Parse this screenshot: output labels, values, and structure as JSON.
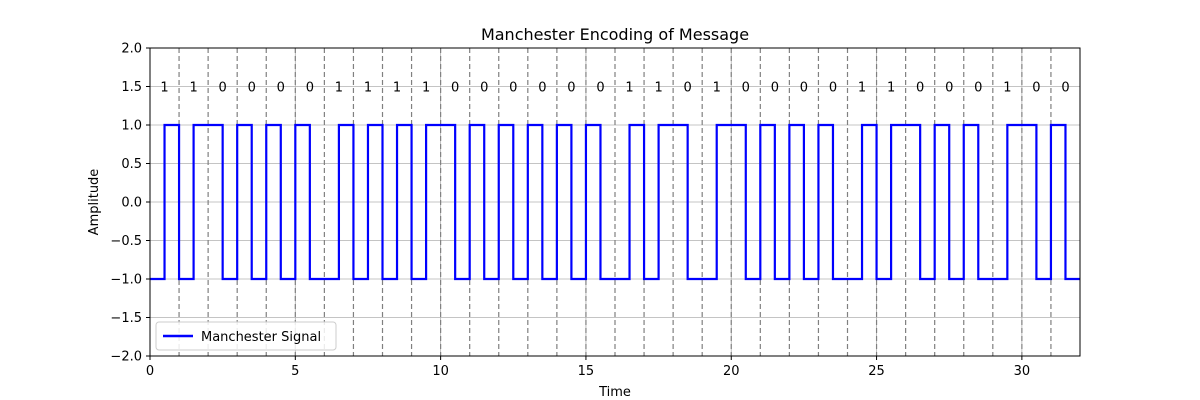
{
  "chart_data": {
    "type": "line",
    "title": "Manchester Encoding of Message",
    "xlabel": "Time",
    "ylabel": "Amplitude",
    "xlim": [
      0,
      32
    ],
    "ylim": [
      -2.0,
      2.0
    ],
    "x_ticks": [
      0,
      5,
      10,
      15,
      20,
      25,
      30
    ],
    "x_tick_labels": [
      "0",
      "5",
      "10",
      "15",
      "20",
      "25",
      "30"
    ],
    "y_ticks": [
      -2.0,
      -1.5,
      -1.0,
      -0.5,
      0.0,
      0.5,
      1.0,
      1.5,
      2.0
    ],
    "y_tick_labels": [
      "−2.0",
      "−1.5",
      "−1.0",
      "−0.5",
      "0.0",
      "0.5",
      "1.0",
      "1.5",
      "2.0"
    ],
    "grid": true,
    "legend_position": "lower-left",
    "bit_label_y": 1.5,
    "bits": [
      "1",
      "1",
      "0",
      "0",
      "0",
      "0",
      "1",
      "1",
      "1",
      "1",
      "0",
      "0",
      "0",
      "0",
      "0",
      "0",
      "1",
      "1",
      "0",
      "1",
      "0",
      "0",
      "0",
      "0",
      "1",
      "1",
      "0",
      "0",
      "0",
      "1",
      "0",
      "0"
    ],
    "bit_boundaries": [
      1,
      2,
      3,
      4,
      5,
      6,
      7,
      8,
      9,
      10,
      11,
      12,
      13,
      14,
      15,
      16,
      17,
      18,
      19,
      20,
      21,
      22,
      23,
      24,
      25,
      26,
      27,
      28,
      29,
      30,
      31
    ],
    "series": [
      {
        "name": "Manchester Signal",
        "color": "#0000ff",
        "encoding": "bit 1: low then high; bit 0: high then low",
        "low": -1.0,
        "high": 1.0
      }
    ],
    "boundary_color": "#808080"
  }
}
